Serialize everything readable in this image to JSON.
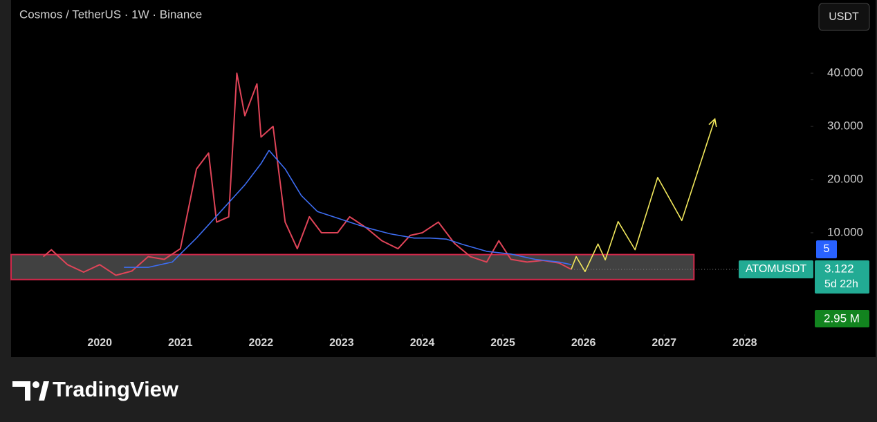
{
  "chart_data": {
    "type": "line",
    "title": "Cosmos / TetherUS · 1W · Binance",
    "currency_button": "USDT",
    "brand": "TradingView",
    "xlim": [
      2018.9,
      2028.8
    ],
    "xticks": [
      2020,
      2021,
      2022,
      2023,
      2024,
      2025,
      2026,
      2027,
      2028
    ],
    "ylim": [
      -5,
      50
    ],
    "yticks": [
      {
        "value": 10,
        "label": "10.000"
      },
      {
        "value": 20,
        "label": "20.000"
      },
      {
        "value": 30,
        "label": "30.000"
      },
      {
        "value": 40,
        "label": "40.000"
      }
    ],
    "series": [
      {
        "name": "ATOMUSDT",
        "color": "#e04458",
        "x": [
          2019.3,
          2019.4,
          2019.6,
          2019.8,
          2020.0,
          2020.2,
          2020.4,
          2020.6,
          2020.8,
          2021.0,
          2021.2,
          2021.35,
          2021.45,
          2021.6,
          2021.7,
          2021.8,
          2021.95,
          2022.0,
          2022.15,
          2022.3,
          2022.45,
          2022.6,
          2022.75,
          2022.95,
          2023.1,
          2023.3,
          2023.5,
          2023.7,
          2023.85,
          2024.0,
          2024.2,
          2024.4,
          2024.6,
          2024.8,
          2024.95,
          2025.1,
          2025.3,
          2025.5,
          2025.7,
          2025.85
        ],
        "values": [
          5.5,
          6.8,
          4.0,
          2.6,
          4.0,
          2.0,
          2.8,
          5.5,
          5.0,
          7.0,
          22,
          25,
          12,
          13,
          40,
          32,
          38,
          28,
          30,
          12,
          7,
          13,
          10,
          10,
          13,
          11,
          8.5,
          7,
          9.5,
          10,
          12,
          8,
          5.5,
          4.5,
          8.5,
          5,
          4.5,
          4.8,
          4.3,
          3.1
        ]
      },
      {
        "color": "#3d6df2",
        "x": [
          2020.3,
          2020.6,
          2020.9,
          2021.2,
          2021.5,
          2021.8,
          2022.0,
          2022.1,
          2022.3,
          2022.5,
          2022.7,
          2023.0,
          2023.3,
          2023.6,
          2023.9,
          2024.1,
          2024.3,
          2024.5,
          2024.8,
          2025.1,
          2025.4,
          2025.7,
          2025.85
        ],
        "values": [
          3.5,
          3.5,
          4.5,
          9,
          14,
          19,
          23,
          25.5,
          22,
          17,
          14,
          12.5,
          11,
          9.8,
          9,
          9,
          8.8,
          7.8,
          6.5,
          6,
          5,
          4.5,
          4
        ]
      },
      {
        "color": "#f2e85c",
        "x": [
          2025.85,
          2025.91,
          2026.02,
          2026.18,
          2026.27,
          2026.43,
          2026.64,
          2026.92,
          2027.22,
          2027.63
        ],
        "values": [
          3.2,
          5.5,
          2.7,
          7.9,
          4.9,
          12.1,
          6.8,
          20.4,
          12.3,
          31.4
        ]
      }
    ],
    "support_zone": {
      "x_end": 2027.37,
      "low": 1.2,
      "high": 5.9
    },
    "last_price": 3.122,
    "countdown": "5d 22h",
    "alert_count": "5",
    "volume_label": "2.95 M"
  }
}
